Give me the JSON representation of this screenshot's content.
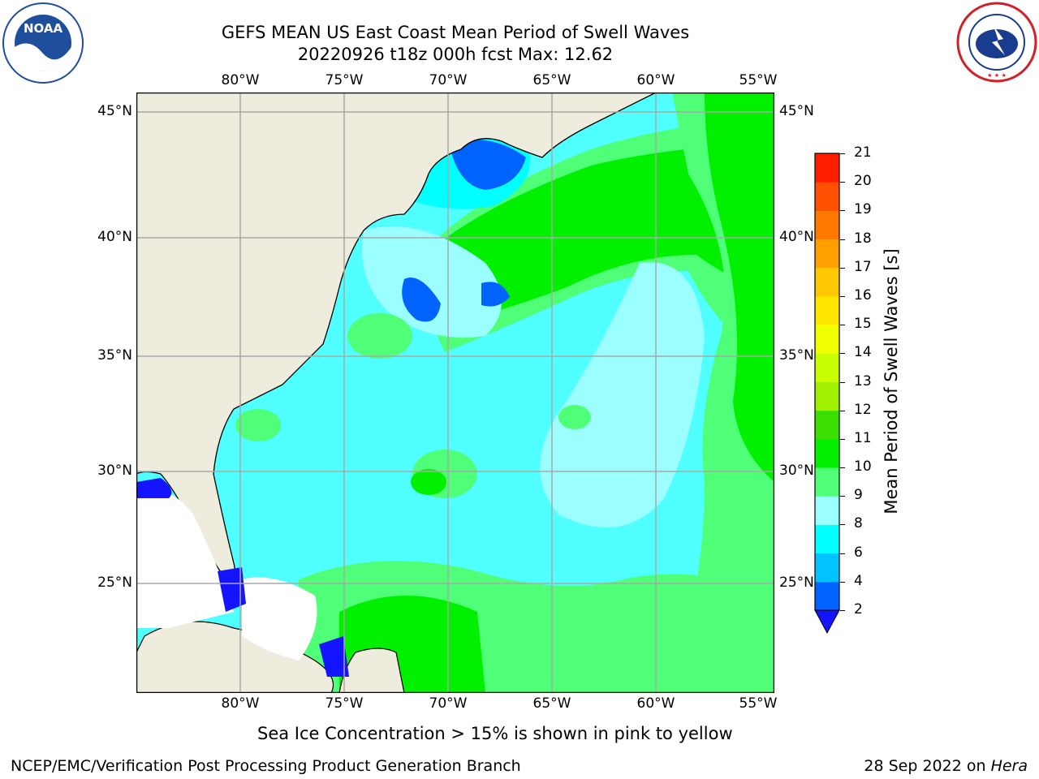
{
  "header": {
    "title_line1": "GEFS MEAN US East Coast Mean Period of Swell Waves",
    "title_line2": "20220926 t18z 000h fcst   Max: 12.62"
  },
  "logos": {
    "left": {
      "name": "NOAA",
      "ring_text": "NATIONAL OCEANIC AND ATMOSPHERIC ADMINISTRATION · U.S. DEPARTMENT OF COMMERCE",
      "color": "#1f4e9c"
    },
    "right": {
      "name": "NATIONAL WEATHER SERVICE",
      "color": "#d0202a"
    }
  },
  "map": {
    "lon_ticks": [
      "80°W",
      "75°W",
      "70°W",
      "65°W",
      "60°W",
      "55°W"
    ],
    "lat_ticks": [
      "45°N",
      "40°N",
      "35°N",
      "30°N",
      "25°N"
    ],
    "lon_range": [
      "84.9°W",
      "54.3°W"
    ],
    "lat_range": [
      "20.4°N",
      "46°N"
    ],
    "grid": true,
    "land_color": "#eeecdc"
  },
  "colorbar": {
    "title": "Mean Period of Swell Waves [s]",
    "levels": [
      "2",
      "4",
      "6",
      "8",
      "9",
      "10",
      "11",
      "12",
      "13",
      "14",
      "15",
      "16",
      "17",
      "18",
      "19",
      "20",
      "21"
    ],
    "colors": [
      "#0063ff",
      "#00c3ff",
      "#00ffff",
      "#9bffff",
      "#50ff78",
      "#00f000",
      "#3ce000",
      "#a0f000",
      "#c8ff00",
      "#f0ff00",
      "#ffe600",
      "#ffc800",
      "#ffa000",
      "#ff7800",
      "#ff5000",
      "#ff1e00"
    ],
    "under_color": "#1414ff"
  },
  "footer": {
    "note": "Sea Ice Concentration > 15% is shown in pink to yellow",
    "credit": "NCEP/EMC/Verification Post Processing Product Generation Branch",
    "date_prefix": "28 Sep 2022 on ",
    "host": "Hera"
  }
}
